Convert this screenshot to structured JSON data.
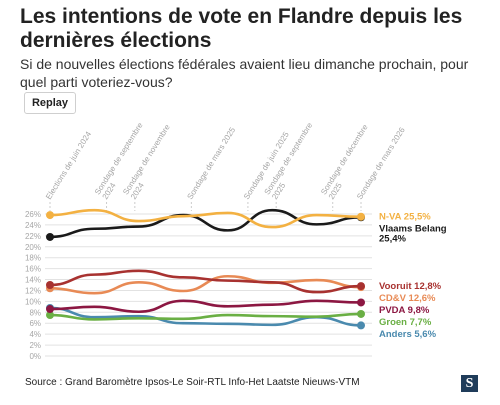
{
  "header": {
    "title": "Les intentions de vote en Flandre depuis les dernières élections",
    "subtitle": "Si de nouvelles élections fédérales avaient lieu dimanche prochain, pour quel parti voteriez-vous?"
  },
  "controls": {
    "replay_label": "Replay"
  },
  "footer": {
    "source": "Source : Grand Baromètre Ipsos-Le Soir-RTL Info-Het Laatste Nieuws-VTM",
    "logo_letter": "S"
  },
  "chart_data": {
    "type": "line",
    "title": "",
    "xlabel": "",
    "ylabel": "",
    "y_ticks": [
      "0%",
      "2%",
      "4%",
      "6%",
      "8%",
      "10%",
      "12%",
      "14%",
      "16%",
      "18%",
      "20%",
      "22%",
      "24%",
      "26%"
    ],
    "ylim": [
      0,
      26
    ],
    "grid": true,
    "x_labels": [
      {
        "lines": [
          "Elections de juin 2024"
        ],
        "pos": 0
      },
      {
        "lines": [
          "Sondage de septembre",
          "2024"
        ],
        "pos": 2
      },
      {
        "lines": [
          "Sondage de novembre",
          "2024"
        ],
        "pos": 3
      },
      {
        "lines": [
          "Sondage de mars 2025"
        ],
        "pos": 5
      },
      {
        "lines": [
          "Sondage de juin 2025"
        ],
        "pos": 7
      },
      {
        "lines": [
          "Sondage de septembre",
          "2025"
        ],
        "pos": 8
      },
      {
        "lines": [
          "Sondage de décembre",
          "2025"
        ],
        "pos": 10
      },
      {
        "lines": [
          "Sondage de mars 2026"
        ],
        "pos": 11
      }
    ],
    "series": [
      {
        "name": "N-VA",
        "value_label": "25,5%",
        "label_lines": [
          "N-VA 25,5%"
        ],
        "color": "#f3b142",
        "values": [
          25.8,
          26.7,
          24.7,
          25.6,
          26.2,
          23.6,
          25.8,
          25.5
        ]
      },
      {
        "name": "Vlaams Belang",
        "value_label": "25,4%",
        "label_lines": [
          "Vlaams Belang",
          "25,4%"
        ],
        "color": "#1a1a1a",
        "values": [
          21.8,
          23.3,
          23.7,
          25.8,
          23.0,
          26.7,
          24.1,
          25.4
        ]
      },
      {
        "name": "Vooruit",
        "value_label": "12,8%",
        "label_lines": [
          "Vooruit 12,8%"
        ],
        "color": "#a83230",
        "values": [
          13.0,
          14.9,
          15.6,
          14.4,
          13.8,
          13.5,
          11.7,
          12.8
        ]
      },
      {
        "name": "CD&V",
        "value_label": "12,6%",
        "label_lines": [
          "CD&V 12,6%"
        ],
        "color": "#e88a55",
        "values": [
          12.4,
          11.5,
          13.5,
          11.9,
          14.6,
          13.4,
          13.9,
          12.6
        ]
      },
      {
        "name": "PVDA",
        "value_label": "9,8%",
        "label_lines": [
          "PVDA 9,8%"
        ],
        "color": "#8c1742",
        "values": [
          8.6,
          9.0,
          8.1,
          10.1,
          9.1,
          9.4,
          10.1,
          9.8
        ]
      },
      {
        "name": "Groen",
        "value_label": "7,7%",
        "label_lines": [
          "Groen 7,7%"
        ],
        "color": "#6aaf44",
        "values": [
          7.5,
          6.7,
          6.9,
          6.8,
          7.5,
          7.3,
          7.2,
          7.7
        ]
      },
      {
        "name": "Anders",
        "value_label": "5,6%",
        "label_lines": [
          "Anders 5,6%"
        ],
        "color": "#4a8aae",
        "values": [
          8.8,
          7.1,
          7.3,
          6.0,
          5.9,
          5.7,
          7.1,
          5.6
        ]
      }
    ]
  }
}
